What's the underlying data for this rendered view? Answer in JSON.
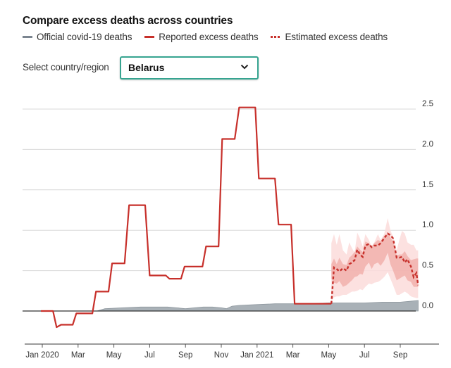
{
  "header": {
    "title": "Compare excess deaths across countries"
  },
  "legend": {
    "items": [
      {
        "label": "Official covid-19 deaths",
        "icon": "grey-line-swatch"
      },
      {
        "label": "Reported excess deaths",
        "icon": "red-line-swatch"
      },
      {
        "label": "Estimated excess deaths",
        "icon": "red-dotted-swatch"
      }
    ]
  },
  "selector": {
    "label": "Select country/region",
    "value": "Belarus",
    "icon": "chevron-down-icon"
  },
  "colors": {
    "official": "#a9b1b7",
    "reported": "#c7302b",
    "estimated_band_outer": "#fbdcda",
    "estimated_band_inner": "#f0a9a5",
    "select_border": "#36a490",
    "gridline": "#d9d9d9",
    "axis": "#333333"
  },
  "chart_data": {
    "type": "line",
    "title": "Compare excess deaths across countries",
    "xlabel": "",
    "ylabel": "",
    "ylim": [
      0,
      2.5
    ],
    "y_ticks": [
      "0.0",
      "0.5",
      "1.0",
      "1.5",
      "2.0",
      "2.5"
    ],
    "y_tick_values": [
      0,
      0.5,
      1.0,
      1.5,
      2.0,
      2.5
    ],
    "y_axis_side": "right",
    "x_ticks": [
      "Jan 2020",
      "Mar",
      "May",
      "Jul",
      "Sep",
      "Nov",
      "Jan 2021",
      "Mar",
      "May",
      "Jul",
      "Sep"
    ],
    "x_tick_months": [
      0,
      2,
      4,
      6,
      8,
      10,
      12,
      14,
      16,
      18,
      20
    ],
    "x_unit": "months since Jan 2020",
    "grid": true,
    "legend_position": "top",
    "series": [
      {
        "name": "Reported excess deaths",
        "style": "solid",
        "x": [
          -0.08,
          0.6,
          0.8,
          1.05,
          1.7,
          1.9,
          2.8,
          3.0,
          3.7,
          3.9,
          4.6,
          4.85,
          5.75,
          6.0,
          6.9,
          7.1,
          7.75,
          7.95,
          8.95,
          9.15,
          9.85,
          10.05,
          10.75,
          11.0,
          11.9,
          12.1,
          13.0,
          13.2,
          13.9,
          14.1,
          14.85,
          15.05,
          15.75,
          15.95,
          16.15
        ],
        "values": [
          0.0,
          0.0,
          -0.2,
          -0.17,
          -0.17,
          -0.03,
          -0.03,
          0.24,
          0.24,
          0.59,
          0.59,
          1.31,
          1.31,
          0.44,
          0.44,
          0.4,
          0.4,
          0.55,
          0.55,
          0.8,
          0.8,
          2.13,
          2.13,
          2.52,
          2.52,
          1.64,
          1.64,
          1.07,
          1.07,
          0.09,
          0.09,
          0.09,
          0.09,
          0.09,
          0.09
        ]
      },
      {
        "name": "Estimated excess deaths",
        "style": "dotted",
        "x": [
          16.15,
          16.3,
          16.45,
          16.6,
          16.8,
          17.0,
          17.15,
          17.3,
          17.45,
          17.6,
          17.75,
          17.9,
          18.05,
          18.25,
          18.4,
          18.55,
          18.75,
          18.9,
          19.1,
          19.3,
          19.45,
          19.6,
          19.8,
          19.95,
          20.1,
          20.25,
          20.4,
          20.6,
          20.75,
          20.9,
          21.0
        ],
        "values": [
          0.09,
          0.54,
          0.52,
          0.49,
          0.53,
          0.5,
          0.58,
          0.6,
          0.63,
          0.76,
          0.7,
          0.67,
          0.81,
          0.83,
          0.79,
          0.81,
          0.81,
          0.84,
          0.9,
          0.96,
          0.94,
          0.9,
          0.66,
          0.66,
          0.67,
          0.6,
          0.64,
          0.55,
          0.42,
          0.47,
          0.32
        ]
      },
      {
        "name": "Estimated excess deaths 95% range",
        "style": "band-outer",
        "x": [
          16.15,
          16.3,
          16.45,
          16.6,
          16.8,
          17.0,
          17.15,
          17.3,
          17.45,
          17.6,
          17.75,
          17.9,
          18.05,
          18.25,
          18.4,
          18.55,
          18.75,
          18.9,
          19.1,
          19.3,
          19.45,
          19.6,
          19.8,
          19.95,
          20.1,
          20.25,
          20.4,
          20.6,
          20.75,
          20.9,
          21.0
        ],
        "upper": [
          0.84,
          0.95,
          0.82,
          0.95,
          0.75,
          0.7,
          0.85,
          0.78,
          0.72,
          0.97,
          0.9,
          0.8,
          0.95,
          0.88,
          0.8,
          0.85,
          0.95,
          0.88,
          0.95,
          1.15,
          1.0,
          0.92,
          0.75,
          0.88,
          0.99,
          0.96,
          0.85,
          0.82,
          0.82,
          0.75,
          0.75
        ],
        "lower": [
          0.12,
          0.17,
          0.18,
          0.18,
          0.2,
          0.2,
          0.22,
          0.24,
          0.24,
          0.25,
          0.27,
          0.26,
          0.3,
          0.34,
          0.33,
          0.35,
          0.36,
          0.38,
          0.42,
          0.48,
          0.4,
          0.32,
          0.2,
          0.2,
          0.22,
          0.24,
          0.22,
          0.18,
          0.17,
          0.16,
          0.16
        ]
      },
      {
        "name": "Estimated excess deaths 50% range",
        "style": "band-inner",
        "x": [
          16.15,
          16.3,
          16.45,
          16.6,
          16.8,
          17.0,
          17.15,
          17.3,
          17.45,
          17.6,
          17.75,
          17.9,
          18.05,
          18.25,
          18.4,
          18.55,
          18.75,
          18.9,
          19.1,
          19.3,
          19.45,
          19.6,
          19.8,
          19.95,
          20.1,
          20.25,
          20.4,
          20.6,
          20.75,
          20.9,
          21.0
        ],
        "upper": [
          0.58,
          0.65,
          0.58,
          0.66,
          0.58,
          0.57,
          0.66,
          0.69,
          0.73,
          0.8,
          0.76,
          0.73,
          0.86,
          0.84,
          0.8,
          0.84,
          0.88,
          0.86,
          0.93,
          0.96,
          0.91,
          0.86,
          0.68,
          0.7,
          0.7,
          0.74,
          0.68,
          0.63,
          0.64,
          0.65,
          0.65
        ],
        "lower": [
          0.4,
          0.35,
          0.34,
          0.37,
          0.3,
          0.32,
          0.35,
          0.38,
          0.42,
          0.43,
          0.46,
          0.45,
          0.55,
          0.6,
          0.52,
          0.58,
          0.6,
          0.56,
          0.62,
          0.72,
          0.58,
          0.5,
          0.38,
          0.4,
          0.42,
          0.44,
          0.38,
          0.36,
          0.3,
          0.3,
          0.3
        ]
      },
      {
        "name": "Official covid-19 deaths",
        "style": "area",
        "x": [
          3.05,
          3.5,
          4.5,
          5.5,
          6.5,
          7.0,
          7.5,
          8.0,
          8.5,
          9.0,
          9.5,
          10.0,
          10.3,
          10.6,
          11.0,
          12.0,
          13.0,
          14.0,
          15.0,
          16.0,
          17.0,
          18.0,
          19.0,
          20.0,
          21.0
        ],
        "values": [
          0.0,
          0.03,
          0.04,
          0.05,
          0.05,
          0.05,
          0.04,
          0.03,
          0.04,
          0.05,
          0.05,
          0.04,
          0.03,
          0.06,
          0.07,
          0.08,
          0.09,
          0.09,
          0.09,
          0.1,
          0.1,
          0.1,
          0.11,
          0.11,
          0.13
        ]
      }
    ]
  }
}
